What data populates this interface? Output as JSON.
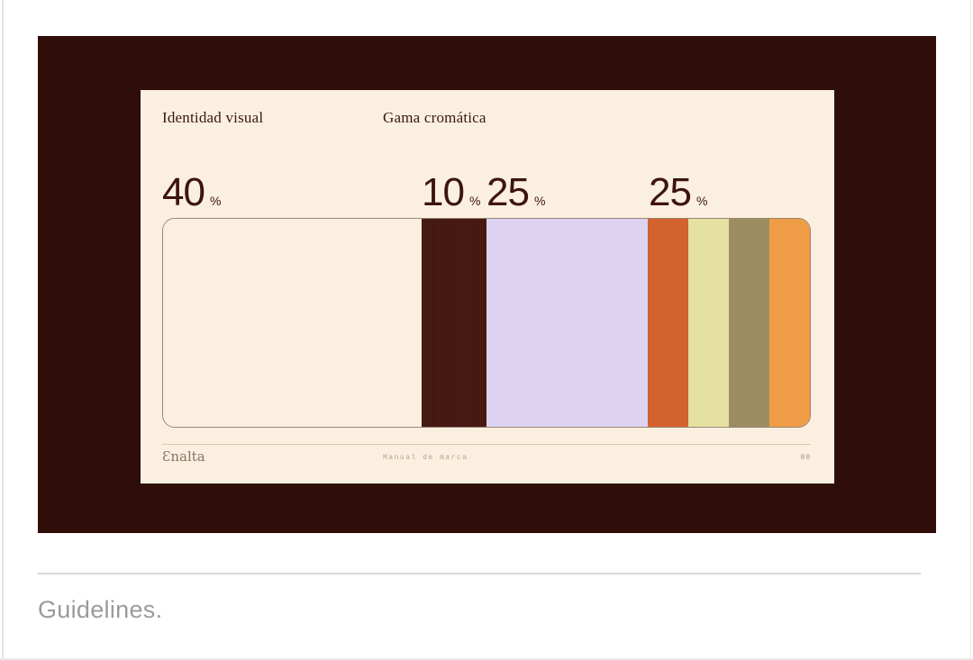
{
  "page": {
    "background": "#ffffff",
    "guidelines_label": "Guidelines."
  },
  "slide": {
    "panel_color": "#2F0D08",
    "card_color": "#FBF0DF",
    "text_color": "#3A1711",
    "header": {
      "left": "Identidad visual",
      "right": "Gama cromática"
    },
    "palette": {
      "segments": [
        {
          "label": "40",
          "unit": "%",
          "share": 40,
          "colors": [
            "#FBF0DF"
          ]
        },
        {
          "label": "10",
          "unit": "%",
          "share": 10,
          "colors": [
            "#4A1B14"
          ],
          "texture": "stripes"
        },
        {
          "label": "25",
          "unit": "%",
          "share": 25,
          "colors": [
            "#DDD2F2"
          ]
        },
        {
          "label": "25",
          "unit": "%",
          "share": 25,
          "colors": [
            "#D2622E",
            "#E4E1A2",
            "#9C8D60",
            "#EE9C45"
          ]
        }
      ]
    },
    "footer": {
      "brand": "Ɛnalta",
      "document": "Manual de marca",
      "page_number": "80"
    }
  }
}
